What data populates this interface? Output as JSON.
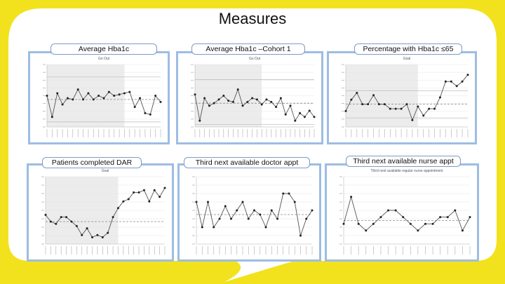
{
  "page": {
    "title": "Measures"
  },
  "colors": {
    "background": "#f2e21d",
    "frame": "#9dbde3",
    "line": "#555555",
    "point": "#222222",
    "band": "#ececec",
    "annotation": "#e0329b",
    "limit": "#b8b8b8"
  },
  "chart_data": [
    {
      "type": "line",
      "panel_label": "Average Hba1c",
      "subtitle": "Go Out",
      "values": [
        55,
        38,
        57,
        48,
        53,
        52,
        60,
        52,
        57,
        52,
        55,
        53,
        58,
        55,
        56,
        57,
        58,
        46,
        53,
        41,
        40,
        55,
        50
      ],
      "ylim": [
        30,
        80
      ],
      "center": 52,
      "ucl": 70,
      "lcl": 34,
      "shaded_through": 15,
      "annotations": []
    },
    {
      "type": "line",
      "panel_label": "Average Hba1c –Cohort 1",
      "subtitle": "Go Out",
      "values": [
        56,
        35,
        53,
        47,
        49,
        52,
        55,
        51,
        50,
        60,
        47,
        50,
        53,
        52,
        48,
        52,
        50,
        46,
        53,
        40,
        47,
        35,
        41,
        38,
        43,
        38
      ],
      "ylim": [
        30,
        80
      ],
      "center": 49,
      "ucl": 68,
      "lcl": 32,
      "shaded_through": 14,
      "annotations": []
    },
    {
      "type": "line",
      "panel_label": "Percentage  with Hba1c ≤65",
      "subtitle": "Goal",
      "values": [
        44,
        54,
        60,
        50,
        50,
        58,
        50,
        50,
        46,
        46,
        46,
        50,
        36,
        48,
        40,
        46,
        46,
        56,
        70,
        70,
        66,
        70,
        76
      ],
      "ylim": [
        30,
        85
      ],
      "center": 50,
      "ucl": 62,
      "lcl": 38,
      "shaded_through": 13,
      "annotations": []
    },
    {
      "type": "line",
      "panel_label": "Patients completed DAR",
      "subtitle": "Goal",
      "values": [
        46,
        40,
        38,
        44,
        44,
        40,
        36,
        28,
        34,
        26,
        28,
        26,
        30,
        44,
        52,
        58,
        60,
        66,
        66,
        68,
        58,
        68,
        62,
        70
      ],
      "ylim": [
        20,
        80
      ],
      "center": 40,
      "ucl": 0,
      "lcl": 0,
      "shaded_through": 14,
      "annotations": []
    },
    {
      "type": "line",
      "panel_label": "Third next available doctor appt",
      "subtitle": "",
      "values": [
        14,
        8,
        14,
        8,
        10,
        13,
        10,
        12,
        14,
        10,
        12,
        11,
        8,
        12,
        10,
        16,
        16,
        14,
        6,
        10,
        12
      ],
      "ylim": [
        4,
        20
      ],
      "center": 11,
      "ucl": 0,
      "lcl": 0,
      "shaded_through": -1,
      "annotations": []
    },
    {
      "type": "line",
      "panel_label": "Third next available nurse appt",
      "subtitle": "Third next available regular nurse appointment",
      "values": [
        6,
        14,
        6,
        4,
        6,
        8,
        10,
        10,
        8,
        6,
        4,
        6,
        6,
        8,
        8,
        10,
        4,
        8
      ],
      "ylim": [
        0,
        20
      ],
      "center": 7,
      "ucl": 0,
      "lcl": 0,
      "shaded_through": -1,
      "annotations": []
    }
  ]
}
